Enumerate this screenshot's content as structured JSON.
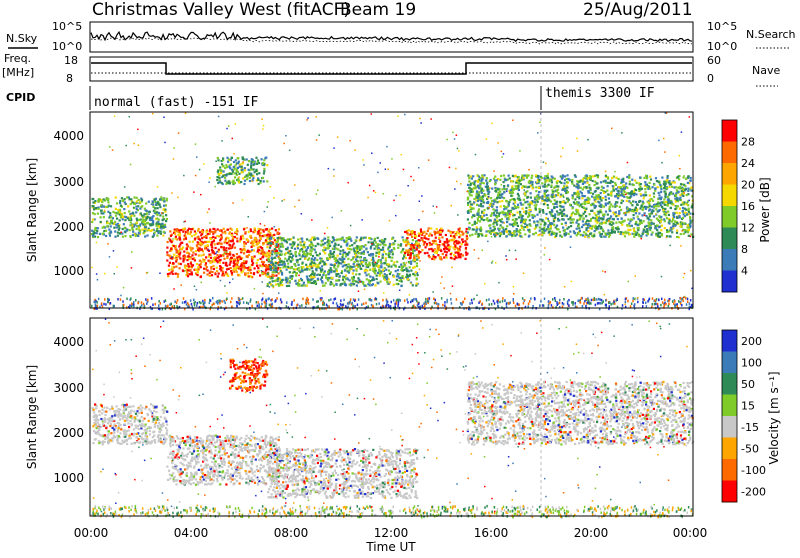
{
  "header": {
    "station": "Christmas Valley West (fitACF)",
    "beam": "Beam 19",
    "date": "25/Aug/2011"
  },
  "strip": {
    "nsky_label": "N.Sky",
    "nsky_ticks": [
      "10^5",
      "10^0"
    ],
    "nsearch_label": "N.Search",
    "nsearch_ticks": [
      "10^5",
      "10^0"
    ],
    "freq_label_1": "Freq.",
    "freq_label_2": "[MHz]",
    "freq_ticks": [
      "18",
      "8"
    ],
    "nave_label": "Nave",
    "nave_ticks": [
      "60",
      "0"
    ],
    "cpid_label": "CPID",
    "cpid_1": "normal (fast) -151 IF",
    "cpid_2": "themis 3300 IF"
  },
  "panels": {
    "ylabel": "Slant Range [km]",
    "yticks": [
      "4000",
      "3000",
      "2000",
      "1000"
    ],
    "xlabel": "Time UT",
    "xticks": [
      "00:00",
      "04:00",
      "08:00",
      "12:00",
      "16:00",
      "20:00",
      "00:00"
    ]
  },
  "chart_data": [
    {
      "type": "heatmap",
      "quantity": "Power",
      "xlabel": "Time UT",
      "ylabel": "Slant Range [km]",
      "xlim_hours": [
        0,
        24
      ],
      "ylim_km": [
        180,
        4600
      ],
      "colorbar": {
        "label": "Power [dB]",
        "ticks": [
          "28",
          "24",
          "20",
          "16",
          "12",
          "8",
          "4"
        ],
        "colors": [
          "#ff0000",
          "#ff6a00",
          "#ffa500",
          "#f5d800",
          "#7ecb2a",
          "#2e8b57",
          "#3b7bb8",
          "#1f2fd0"
        ]
      },
      "features": [
        {
          "t": [
            0.0,
            3.0
          ],
          "range_km": [
            1800,
            2700
          ],
          "level": "medium"
        },
        {
          "t": [
            3.0,
            7.5
          ],
          "range_km": [
            900,
            2000
          ],
          "level": "high"
        },
        {
          "t": [
            5.0,
            7.0
          ],
          "range_km": [
            3000,
            3600
          ],
          "level": "medium"
        },
        {
          "t": [
            7.0,
            13.0
          ],
          "range_km": [
            700,
            1800
          ],
          "level": "medium"
        },
        {
          "t": [
            12.5,
            15.0
          ],
          "range_km": [
            1300,
            2000
          ],
          "level": "high"
        },
        {
          "t": [
            15.0,
            24.0
          ],
          "range_km": [
            1800,
            3200
          ],
          "level": "medium"
        }
      ]
    },
    {
      "type": "heatmap",
      "quantity": "Velocity",
      "xlabel": "Time UT",
      "ylabel": "Slant Range [km]",
      "xlim_hours": [
        0,
        24
      ],
      "ylim_km": [
        180,
        4600
      ],
      "colorbar": {
        "label": "Velocity [m s⁻¹]",
        "ticks": [
          "200",
          "100",
          "50",
          "15",
          "-15",
          "-50",
          "-100",
          "-200"
        ],
        "colors": [
          "#1f2fd0",
          "#3b7bb8",
          "#2e8b57",
          "#7ecb2a",
          "#c8c8c8",
          "#ffa500",
          "#ff6a00",
          "#ff0000"
        ]
      },
      "features": [
        {
          "t": [
            0.0,
            3.0
          ],
          "range_km": [
            1800,
            2700
          ],
          "level": "ground"
        },
        {
          "t": [
            3.0,
            7.5
          ],
          "range_km": [
            900,
            2000
          ],
          "level": "ground"
        },
        {
          "t": [
            5.5,
            7.0
          ],
          "range_km": [
            3000,
            3700
          ],
          "level": "negative"
        },
        {
          "t": [
            7.0,
            13.0
          ],
          "range_km": [
            600,
            1700
          ],
          "level": "ground"
        },
        {
          "t": [
            15.0,
            24.0
          ],
          "range_km": [
            1800,
            3200
          ],
          "level": "ground"
        }
      ]
    }
  ]
}
